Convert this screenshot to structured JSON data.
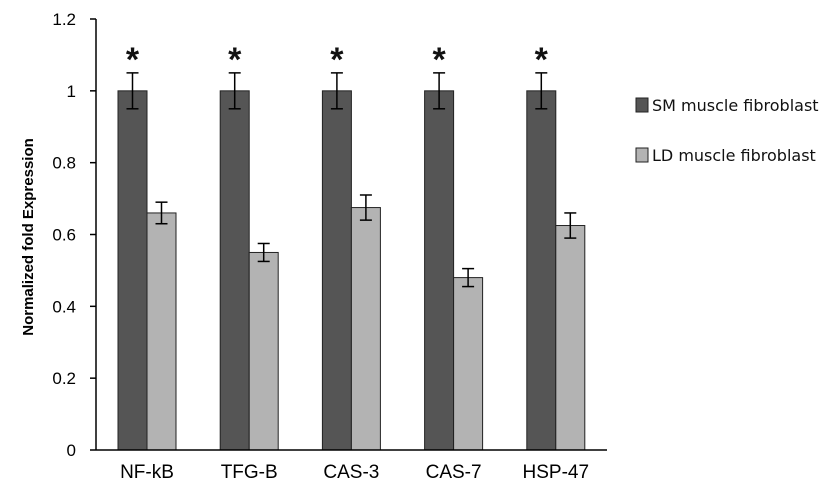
{
  "chart_data": {
    "type": "bar",
    "title": "",
    "xlabel": "",
    "ylabel": "Normalized fold Expression",
    "ylim": [
      0,
      1.2
    ],
    "yticks": [
      "0",
      "0.2",
      "0.4",
      "0.6",
      "0.8",
      "1",
      "1.2"
    ],
    "categories": [
      "NF-kB",
      "TFG-B",
      "CAS-3",
      "CAS-7",
      "HSP-47"
    ],
    "series": [
      {
        "name": "SM muscle fibroblast",
        "color": "#555555",
        "values": [
          1.0,
          1.0,
          1.0,
          1.0,
          1.0
        ],
        "errors": [
          0.05,
          0.05,
          0.05,
          0.05,
          0.05
        ]
      },
      {
        "name": "LD muscle fibroblast",
        "color": "#b3b3b3",
        "values": [
          0.66,
          0.55,
          0.675,
          0.48,
          0.625
        ],
        "errors": [
          0.03,
          0.025,
          0.035,
          0.025,
          0.035
        ]
      }
    ],
    "annotations": [
      "*",
      "*",
      "*",
      "*",
      "*"
    ],
    "legend_position": "right",
    "grid": false
  }
}
